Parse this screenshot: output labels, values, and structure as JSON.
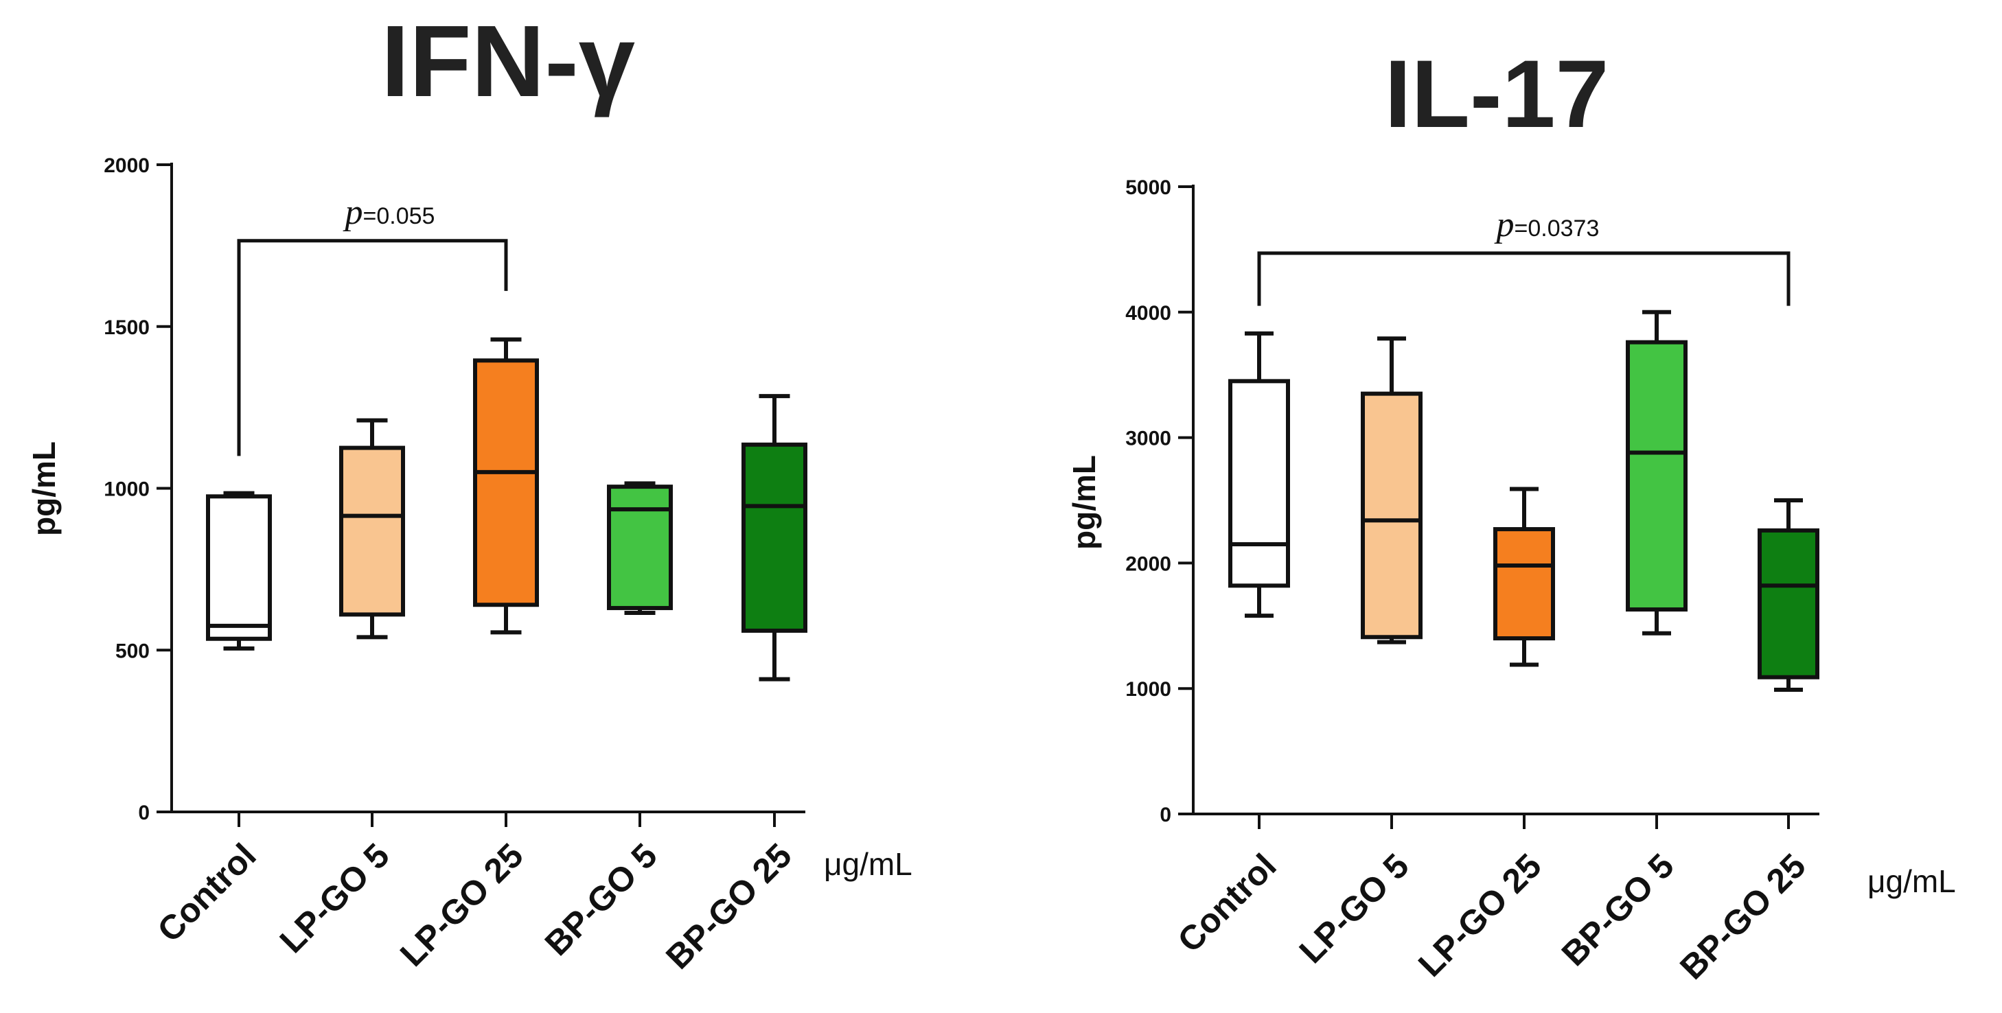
{
  "chart_data": [
    {
      "type": "box",
      "title": "IFN-γ",
      "ylabel": "pg/mL",
      "xunit": "μg/mL",
      "ylim": [
        0,
        2000
      ],
      "yticks": [
        "0",
        "500",
        "1000",
        "1500",
        "2000"
      ],
      "categories": [
        "Control",
        "LP-GO 5",
        "LP-GO 25",
        "BP-GO 5",
        "BP-GO 25"
      ],
      "colors": [
        "#ffffff",
        "#f9c590",
        "#f57f1f",
        "#43c443",
        "#0e7f12"
      ],
      "boxes": [
        {
          "min": 505,
          "q1": 535,
          "median": 575,
          "q3": 975,
          "max": 985
        },
        {
          "min": 540,
          "q1": 610,
          "median": 915,
          "q3": 1125,
          "max": 1210
        },
        {
          "min": 555,
          "q1": 640,
          "median": 1050,
          "q3": 1395,
          "max": 1460
        },
        {
          "min": 615,
          "q1": 630,
          "median": 935,
          "q3": 1005,
          "max": 1015
        },
        {
          "min": 410,
          "q1": 560,
          "median": 945,
          "q3": 1135,
          "max": 1285
        }
      ],
      "significance": {
        "p_symbol": "p",
        "p_value": "=0.055",
        "from": 0,
        "to": 2,
        "y": 1765
      }
    },
    {
      "type": "box",
      "title": "IL-17",
      "ylabel": "pg/mL",
      "xunit": "μg/mL",
      "ylim": [
        0,
        5000
      ],
      "yticks": [
        "0",
        "1000",
        "2000",
        "3000",
        "4000",
        "5000"
      ],
      "categories": [
        "Control",
        "LP-GO 5",
        "LP-GO 25",
        "BP-GO 5",
        "BP-GO 25"
      ],
      "colors": [
        "#ffffff",
        "#f9c590",
        "#f57f1f",
        "#43c443",
        "#0e7f12"
      ],
      "boxes": [
        {
          "min": 1580,
          "q1": 1820,
          "median": 2150,
          "q3": 3450,
          "max": 3830
        },
        {
          "min": 1370,
          "q1": 1410,
          "median": 2340,
          "q3": 3350,
          "max": 3790
        },
        {
          "min": 1190,
          "q1": 1400,
          "median": 1980,
          "q3": 2270,
          "max": 2590
        },
        {
          "min": 1440,
          "q1": 1630,
          "median": 2880,
          "q3": 3760,
          "max": 4000
        },
        {
          "min": 990,
          "q1": 1090,
          "median": 1820,
          "q3": 2260,
          "max": 2500
        }
      ],
      "significance": {
        "p_symbol": "p",
        "p_value": "=0.0373",
        "from": 0,
        "to": 4,
        "y": 4470
      }
    }
  ]
}
